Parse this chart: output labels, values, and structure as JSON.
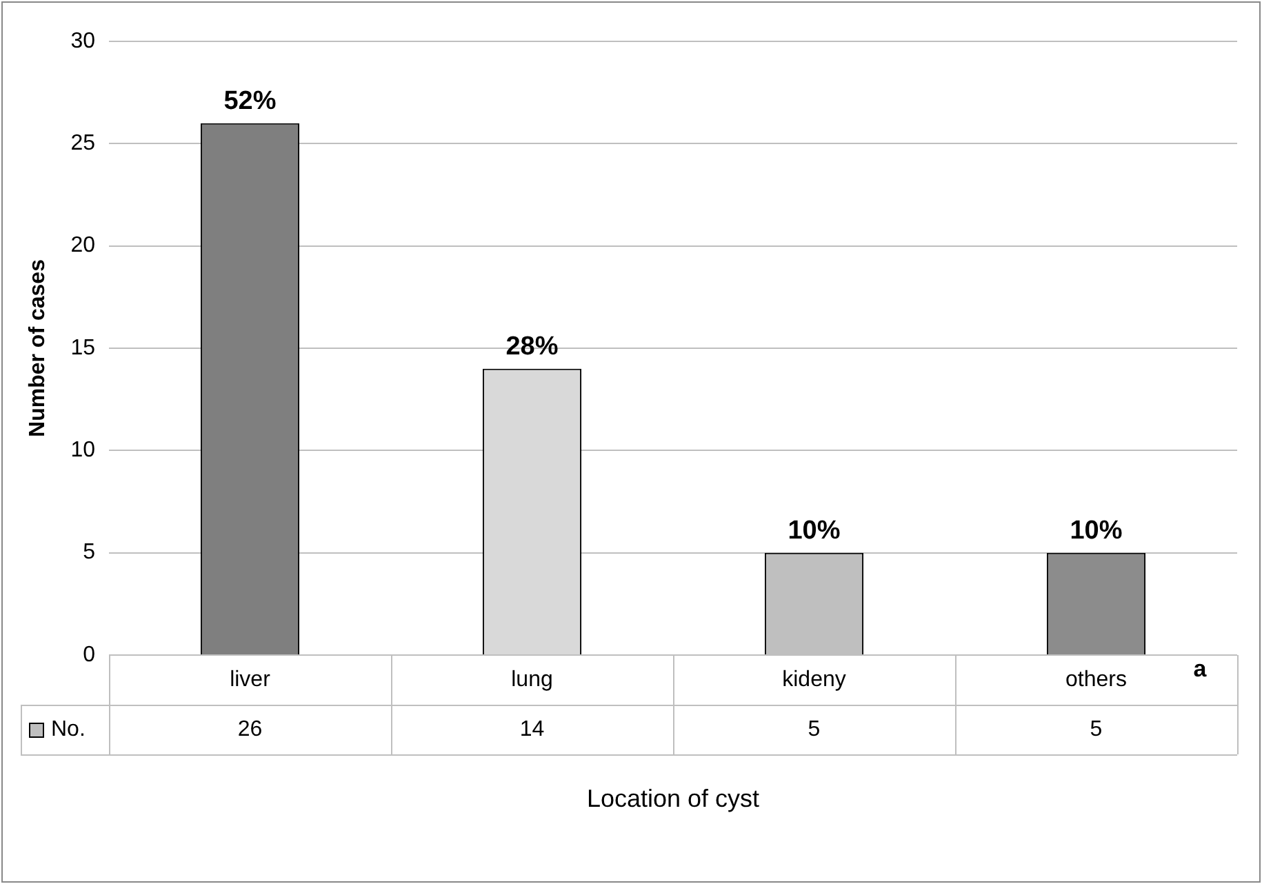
{
  "chart_data": {
    "type": "bar",
    "xlabel": "Location of cyst",
    "ylabel": "Number of cases",
    "categories": [
      "liver",
      "lung",
      "kideny",
      "others"
    ],
    "series": [
      {
        "name": "No.",
        "colors": [
          "#7f7f7f",
          "#d9d9d9",
          "#bfbfbf",
          "#8c8c8c"
        ],
        "values": [
          26,
          14,
          5,
          5
        ]
      }
    ],
    "ylim": [
      0,
      30
    ],
    "yticks": [
      0,
      5,
      10,
      15,
      20,
      25,
      30
    ],
    "grid": "y",
    "legend": "bottom left",
    "data_labels": true,
    "annotations": [
      {
        "text": "52%",
        "x": "liver",
        "y": 26
      },
      {
        "text": "28%",
        "x": "lung",
        "y": 14
      },
      {
        "text": "10%",
        "x": "kideny",
        "y": 5
      },
      {
        "text": "10%",
        "x": "others",
        "y": 5
      },
      "a"
    ]
  }
}
